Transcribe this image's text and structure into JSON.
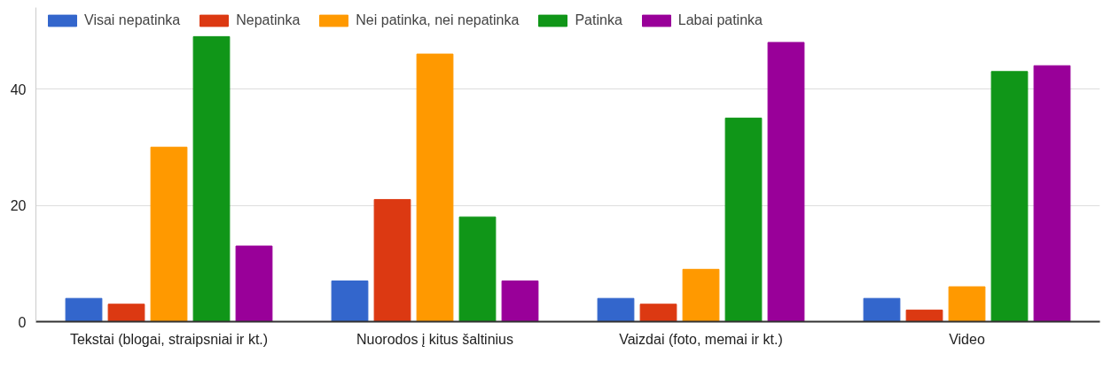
{
  "chart_data": {
    "type": "bar",
    "categories": [
      "Tekstai (blogai, straipsniai ir kt.)",
      "Nuorodos į kitus šaltinius",
      "Vaizdai (foto, memai ir kt.)",
      "Video"
    ],
    "series": [
      {
        "name": "Visai nepatinka",
        "color": "#3366cc",
        "values": [
          4,
          7,
          4,
          4
        ]
      },
      {
        "name": "Nepatinka",
        "color": "#dc3912",
        "values": [
          3,
          21,
          3,
          2
        ]
      },
      {
        "name": "Nei patinka, nei nepatinka",
        "color": "#ff9900",
        "values": [
          30,
          46,
          9,
          6
        ]
      },
      {
        "name": "Patinka",
        "color": "#109618",
        "values": [
          49,
          18,
          35,
          43
        ]
      },
      {
        "name": "Labai patinka",
        "color": "#990099",
        "values": [
          13,
          7,
          48,
          44
        ]
      }
    ],
    "ylim": [
      0,
      54
    ],
    "yticks": [
      0,
      20,
      40
    ],
    "grid": "y",
    "legend": "top"
  }
}
